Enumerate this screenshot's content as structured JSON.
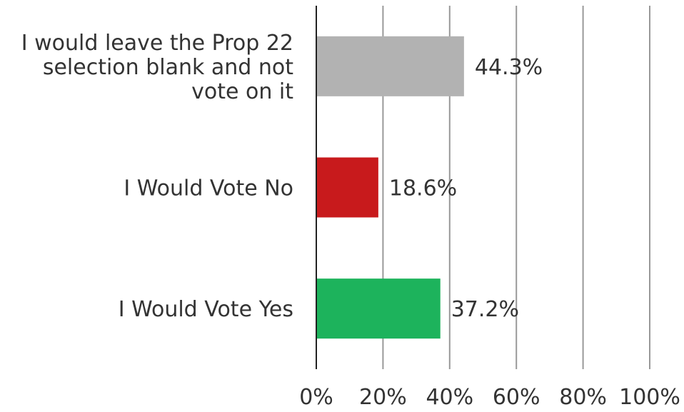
{
  "chart_data": {
    "type": "bar",
    "orientation": "horizontal",
    "categories": [
      "I would leave the Prop 22 selection blank and not vote on it",
      "I Would Vote No",
      "I Would Vote Yes"
    ],
    "category_lines": [
      [
        "I would leave the Prop 22",
        "selection blank and not",
        "vote on it"
      ],
      [
        "I Would Vote No"
      ],
      [
        "I Would Vote Yes"
      ]
    ],
    "values": [
      44.3,
      18.6,
      37.2
    ],
    "data_labels": [
      "44.3%",
      "18.6%",
      "37.2%"
    ],
    "colors": [
      "#b2b2b2",
      "#c81a1c",
      "#1db35c"
    ],
    "xlim": [
      0,
      100
    ],
    "xticks": [
      0,
      20,
      40,
      60,
      80,
      100
    ],
    "xtick_labels": [
      "0%",
      "20%",
      "40%",
      "60%",
      "80%",
      "100%"
    ],
    "grid": true,
    "grid_color": "#999999",
    "axis_color": "#222222",
    "title": "",
    "xlabel": "",
    "ylabel": ""
  }
}
